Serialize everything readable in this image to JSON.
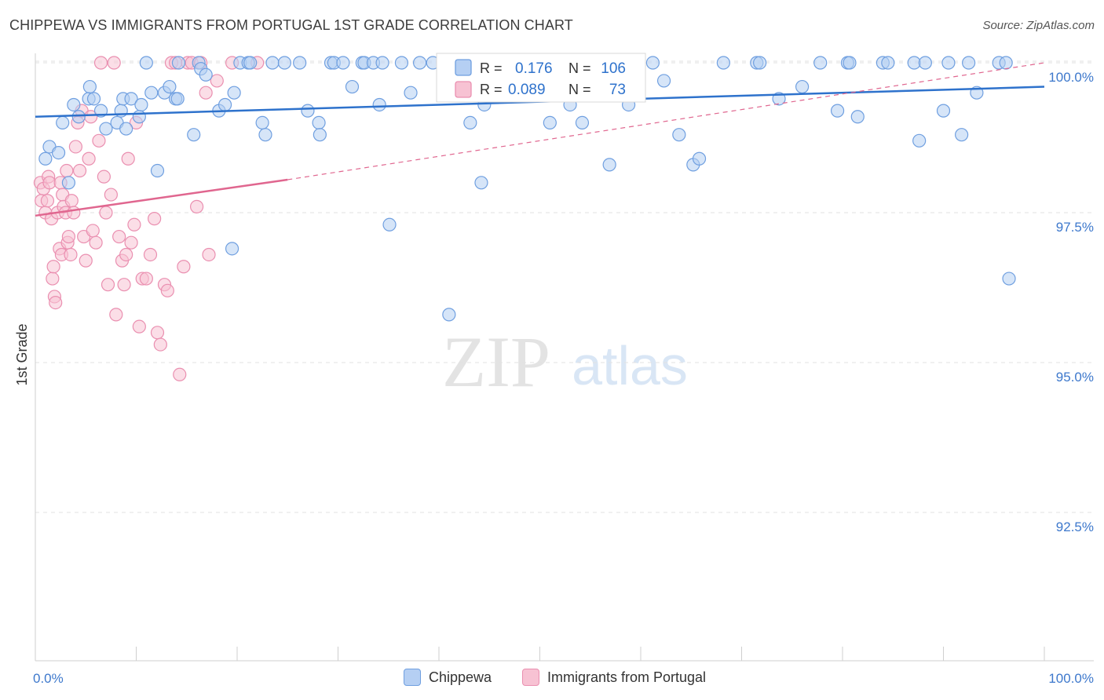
{
  "header": {
    "title": "CHIPPEWA VS IMMIGRANTS FROM PORTUGAL 1ST GRADE CORRELATION CHART",
    "source": "Source: ZipAtlas.com"
  },
  "watermark": {
    "zip": "ZIP",
    "atlas": "atlas"
  },
  "chart_data": {
    "type": "scatter",
    "title": "CHIPPEWA VS IMMIGRANTS FROM PORTUGAL 1ST GRADE CORRELATION CHART",
    "xlabel": "",
    "ylabel": "1st Grade",
    "xlim": [
      0,
      100
    ],
    "ylim": [
      90.0,
      100.3
    ],
    "x_tick_labels": [
      "0.0%",
      "100.0%"
    ],
    "y_ticks": [
      {
        "value": 100.0,
        "label": "100.0%"
      },
      {
        "value": 97.5,
        "label": "97.5%"
      },
      {
        "value": 95.0,
        "label": "95.0%"
      },
      {
        "value": 92.5,
        "label": "92.5%"
      }
    ],
    "grid": true,
    "legend_position": "top-center",
    "series": [
      {
        "name": "Chippewa",
        "color": "#6f9fe0",
        "fill": "#b5cff3",
        "line_color": "#2e72cc",
        "R": "0.176",
        "N": "106",
        "trend": {
          "x": [
            0,
            100
          ],
          "y": [
            99.1,
            99.6
          ],
          "style": "solid"
        },
        "points": [
          [
            1.4,
            98.6
          ],
          [
            1.0,
            98.4
          ],
          [
            2.3,
            98.5
          ],
          [
            3.3,
            98.0
          ],
          [
            2.7,
            99.0
          ],
          [
            3.8,
            99.3
          ],
          [
            4.3,
            99.1
          ],
          [
            5.3,
            99.4
          ],
          [
            5.4,
            99.6
          ],
          [
            5.8,
            99.4
          ],
          [
            6.5,
            99.2
          ],
          [
            7.0,
            98.9
          ],
          [
            8.1,
            99.0
          ],
          [
            8.5,
            99.2
          ],
          [
            8.7,
            99.4
          ],
          [
            9.0,
            98.9
          ],
          [
            9.5,
            99.4
          ],
          [
            10.3,
            99.1
          ],
          [
            10.5,
            99.3
          ],
          [
            11.0,
            100.0
          ],
          [
            11.5,
            99.5
          ],
          [
            12.1,
            98.2
          ],
          [
            12.8,
            99.5
          ],
          [
            13.3,
            99.6
          ],
          [
            13.9,
            99.4
          ],
          [
            14.1,
            99.4
          ],
          [
            14.2,
            100.0
          ],
          [
            15.7,
            98.8
          ],
          [
            16.2,
            100.0
          ],
          [
            16.4,
            99.9
          ],
          [
            16.9,
            99.8
          ],
          [
            18.2,
            99.2
          ],
          [
            18.8,
            99.3
          ],
          [
            19.5,
            96.9
          ],
          [
            19.7,
            99.5
          ],
          [
            20.3,
            100.0
          ],
          [
            21.1,
            100.0
          ],
          [
            21.3,
            100.0
          ],
          [
            22.5,
            99.0
          ],
          [
            22.8,
            98.8
          ],
          [
            23.5,
            100.0
          ],
          [
            24.7,
            100.0
          ],
          [
            26.2,
            100.0
          ],
          [
            27.0,
            99.2
          ],
          [
            28.1,
            99.0
          ],
          [
            28.2,
            98.8
          ],
          [
            29.3,
            100.0
          ],
          [
            29.6,
            100.0
          ],
          [
            30.5,
            100.0
          ],
          [
            31.4,
            99.6
          ],
          [
            32.4,
            100.0
          ],
          [
            32.6,
            100.0
          ],
          [
            33.5,
            100.0
          ],
          [
            34.1,
            99.3
          ],
          [
            34.4,
            100.0
          ],
          [
            35.1,
            97.3
          ],
          [
            36.3,
            100.0
          ],
          [
            37.2,
            99.5
          ],
          [
            38.1,
            100.0
          ],
          [
            39.4,
            100.0
          ],
          [
            40.5,
            100.0
          ],
          [
            41.0,
            95.8
          ],
          [
            42.2,
            100.0
          ],
          [
            43.1,
            99.0
          ],
          [
            44.2,
            98.0
          ],
          [
            44.5,
            99.3
          ],
          [
            45.0,
            100.0
          ],
          [
            46.5,
            100.0
          ],
          [
            47.1,
            99.6
          ],
          [
            48.5,
            100.0
          ],
          [
            49.3,
            100.0
          ],
          [
            50.5,
            100.0
          ],
          [
            51.0,
            99.0
          ],
          [
            52.0,
            100.0
          ],
          [
            53.0,
            99.3
          ],
          [
            54.2,
            99.0
          ],
          [
            56.9,
            98.3
          ],
          [
            58.8,
            99.3
          ],
          [
            61.2,
            100.0
          ],
          [
            62.3,
            99.7
          ],
          [
            63.8,
            98.8
          ],
          [
            65.2,
            98.3
          ],
          [
            65.8,
            98.4
          ],
          [
            68.2,
            100.0
          ],
          [
            71.5,
            100.0
          ],
          [
            71.8,
            100.0
          ],
          [
            73.7,
            99.4
          ],
          [
            76.0,
            99.6
          ],
          [
            77.8,
            100.0
          ],
          [
            79.5,
            99.2
          ],
          [
            80.5,
            100.0
          ],
          [
            80.7,
            100.0
          ],
          [
            81.5,
            99.1
          ],
          [
            84.0,
            100.0
          ],
          [
            84.5,
            100.0
          ],
          [
            87.1,
            100.0
          ],
          [
            87.6,
            98.7
          ],
          [
            88.2,
            100.0
          ],
          [
            90.0,
            99.2
          ],
          [
            90.5,
            100.0
          ],
          [
            91.8,
            98.8
          ],
          [
            92.5,
            100.0
          ],
          [
            93.3,
            99.5
          ],
          [
            95.5,
            100.0
          ],
          [
            96.2,
            100.0
          ],
          [
            96.5,
            96.4
          ]
        ]
      },
      {
        "name": "Immigrants from Portugal",
        "color": "#ea8fb0",
        "fill": "#f7c2d3",
        "line_color": "#e0668f",
        "R": "0.089",
        "N": "73",
        "trend": {
          "x": [
            0,
            25
          ],
          "y": [
            97.45,
            98.05
          ],
          "style": "solid",
          "extended_x": [
            25,
            100
          ],
          "extended_y": [
            98.05,
            100.0
          ],
          "extended_style": "dashed"
        },
        "points": [
          [
            0.5,
            98.0
          ],
          [
            0.6,
            97.7
          ],
          [
            0.8,
            97.9
          ],
          [
            1.0,
            97.5
          ],
          [
            1.2,
            97.7
          ],
          [
            1.3,
            98.1
          ],
          [
            1.4,
            98.0
          ],
          [
            1.6,
            97.4
          ],
          [
            1.7,
            96.4
          ],
          [
            1.8,
            96.6
          ],
          [
            1.9,
            96.1
          ],
          [
            2.0,
            96.0
          ],
          [
            2.2,
            97.5
          ],
          [
            2.4,
            96.9
          ],
          [
            2.5,
            98.0
          ],
          [
            2.6,
            96.8
          ],
          [
            2.7,
            97.8
          ],
          [
            2.8,
            97.6
          ],
          [
            3.0,
            97.5
          ],
          [
            3.1,
            98.2
          ],
          [
            3.2,
            97.0
          ],
          [
            3.3,
            97.1
          ],
          [
            3.5,
            96.8
          ],
          [
            3.6,
            97.7
          ],
          [
            3.8,
            97.5
          ],
          [
            4.0,
            98.6
          ],
          [
            4.2,
            99.0
          ],
          [
            4.4,
            98.2
          ],
          [
            4.6,
            99.2
          ],
          [
            4.8,
            97.1
          ],
          [
            5.0,
            96.7
          ],
          [
            5.3,
            98.4
          ],
          [
            5.5,
            99.1
          ],
          [
            5.7,
            97.2
          ],
          [
            6.0,
            97.0
          ],
          [
            6.3,
            98.7
          ],
          [
            6.5,
            100.0
          ],
          [
            6.8,
            98.1
          ],
          [
            7.0,
            97.5
          ],
          [
            7.2,
            96.3
          ],
          [
            7.5,
            97.8
          ],
          [
            7.8,
            100.0
          ],
          [
            8.0,
            95.8
          ],
          [
            8.3,
            97.1
          ],
          [
            8.6,
            96.7
          ],
          [
            8.8,
            96.3
          ],
          [
            9.0,
            96.8
          ],
          [
            9.2,
            98.4
          ],
          [
            9.5,
            97.0
          ],
          [
            9.8,
            97.3
          ],
          [
            10.0,
            99.0
          ],
          [
            10.3,
            95.6
          ],
          [
            10.6,
            96.4
          ],
          [
            11.0,
            96.4
          ],
          [
            11.4,
            96.8
          ],
          [
            11.8,
            97.4
          ],
          [
            12.1,
            95.5
          ],
          [
            12.4,
            95.3
          ],
          [
            12.8,
            96.3
          ],
          [
            13.1,
            96.2
          ],
          [
            13.5,
            100.0
          ],
          [
            13.9,
            100.0
          ],
          [
            14.3,
            94.8
          ],
          [
            14.7,
            96.6
          ],
          [
            15.1,
            100.0
          ],
          [
            15.5,
            100.0
          ],
          [
            16.0,
            97.6
          ],
          [
            16.4,
            100.0
          ],
          [
            16.9,
            99.5
          ],
          [
            17.2,
            96.8
          ],
          [
            18.0,
            99.7
          ],
          [
            19.5,
            100.0
          ],
          [
            22.0,
            100.0
          ]
        ]
      }
    ]
  },
  "legend_top": {
    "rows": [
      {
        "r_label": "R =",
        "r_value": "0.176",
        "n_label": "N =",
        "n_value": "106"
      },
      {
        "r_label": "R =",
        "r_value": "0.089",
        "n_label": "N =",
        "n_value": "73"
      }
    ]
  },
  "legend_bottom": {
    "items": [
      {
        "label": "Chippewa"
      },
      {
        "label": "Immigrants from Portugal"
      }
    ]
  }
}
